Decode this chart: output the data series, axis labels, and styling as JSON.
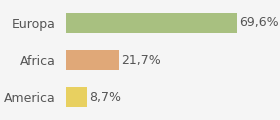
{
  "categories": [
    "America",
    "Africa",
    "Europa"
  ],
  "values": [
    8.7,
    21.7,
    69.6
  ],
  "labels": [
    "8,7%",
    "21,7%",
    "69,6%"
  ],
  "bar_colors": [
    "#e8d060",
    "#e0a878",
    "#a8c080"
  ],
  "background_color": "#f5f5f5",
  "xlim": [
    0,
    80
  ],
  "label_fontsize": 9,
  "tick_fontsize": 9
}
